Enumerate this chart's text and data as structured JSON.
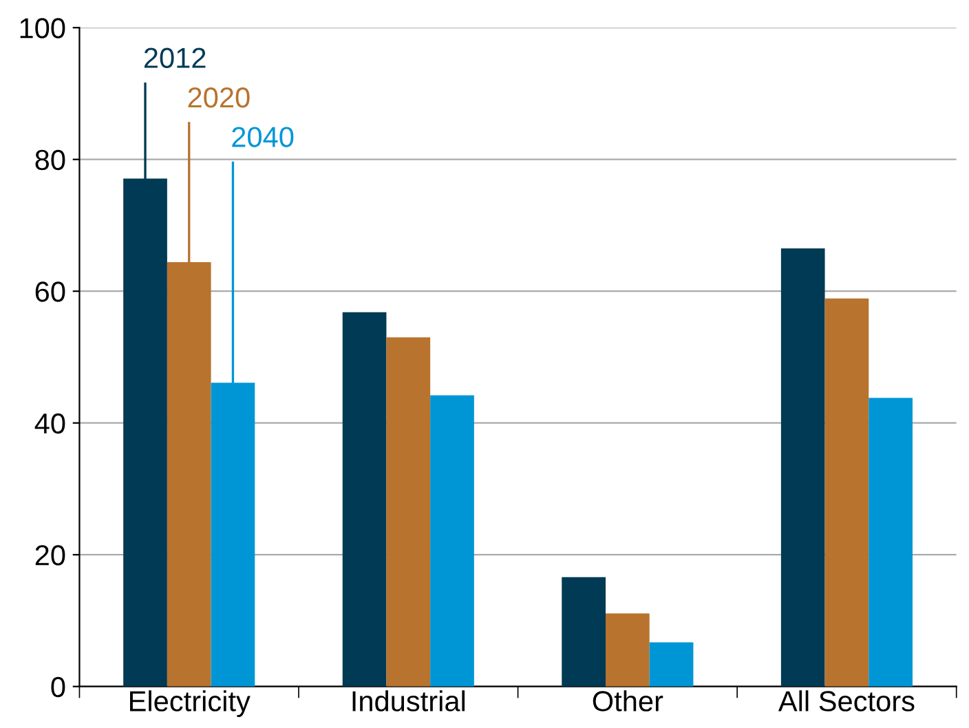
{
  "chart_data": {
    "type": "bar",
    "categories": [
      "Electricity",
      "Industrial",
      "Other",
      "All Sectors"
    ],
    "series": [
      {
        "name": "2012",
        "color": "#003a54",
        "values": [
          77.1,
          56.8,
          16.6,
          66.5
        ]
      },
      {
        "name": "2020",
        "color": "#b8732e",
        "values": [
          64.4,
          53.0,
          11.1,
          58.9
        ]
      },
      {
        "name": "2040",
        "color": "#0096d6",
        "values": [
          46.1,
          44.2,
          6.7,
          43.8
        ]
      }
    ],
    "ylim": [
      0,
      100
    ],
    "yticks": [
      0,
      20,
      40,
      60,
      80,
      100
    ],
    "grid": "y",
    "legend": false
  }
}
